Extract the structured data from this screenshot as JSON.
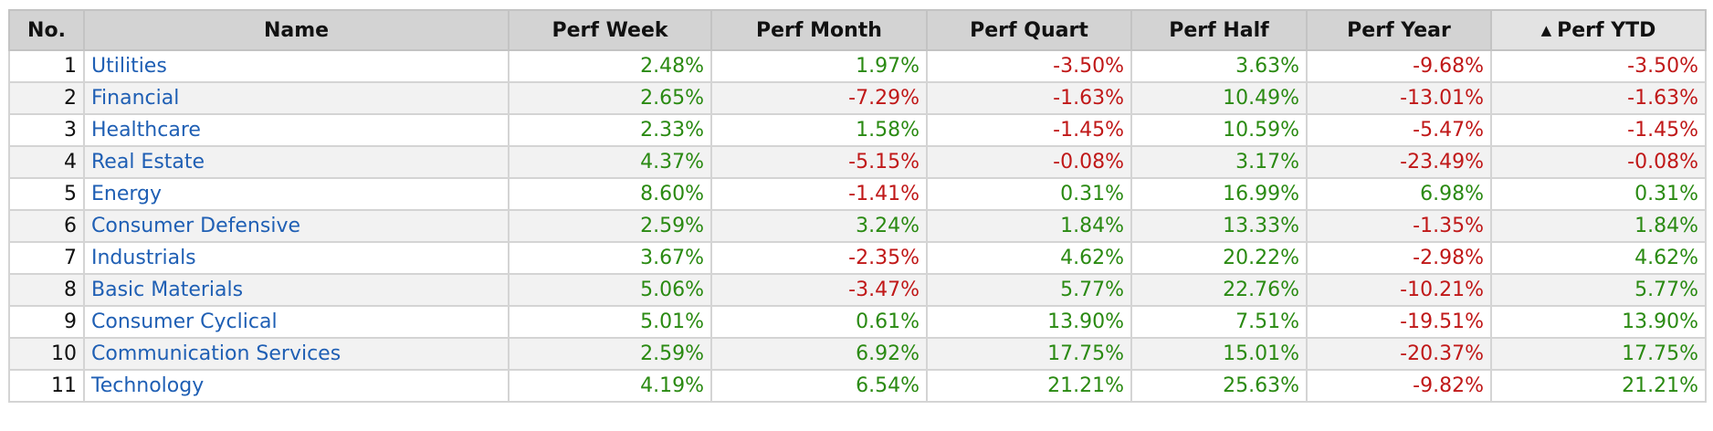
{
  "colors": {
    "positive": "#2a8a12",
    "negative": "#c01818",
    "link": "#1f5fb4",
    "header_bg": "#d3d3d3",
    "header_sorted_bg": "#e3e3e3",
    "row_alt_bg": "#f2f2f2"
  },
  "table": {
    "columns": [
      "No.",
      "Name",
      "Perf Week",
      "Perf Month",
      "Perf Quart",
      "Perf Half",
      "Perf Year",
      "Perf YTD"
    ],
    "sort": {
      "column": "Perf YTD",
      "direction": "ascending",
      "icon": "sort-up-icon"
    },
    "rows": [
      {
        "no": "1",
        "name": "Utilities",
        "week": "2.48%",
        "month": "1.97%",
        "quart": "-3.50%",
        "half": "3.63%",
        "year": "-9.68%",
        "ytd": "-3.50%"
      },
      {
        "no": "2",
        "name": "Financial",
        "week": "2.65%",
        "month": "-7.29%",
        "quart": "-1.63%",
        "half": "10.49%",
        "year": "-13.01%",
        "ytd": "-1.63%"
      },
      {
        "no": "3",
        "name": "Healthcare",
        "week": "2.33%",
        "month": "1.58%",
        "quart": "-1.45%",
        "half": "10.59%",
        "year": "-5.47%",
        "ytd": "-1.45%"
      },
      {
        "no": "4",
        "name": "Real Estate",
        "week": "4.37%",
        "month": "-5.15%",
        "quart": "-0.08%",
        "half": "3.17%",
        "year": "-23.49%",
        "ytd": "-0.08%"
      },
      {
        "no": "5",
        "name": "Energy",
        "week": "8.60%",
        "month": "-1.41%",
        "quart": "0.31%",
        "half": "16.99%",
        "year": "6.98%",
        "ytd": "0.31%"
      },
      {
        "no": "6",
        "name": "Consumer Defensive",
        "week": "2.59%",
        "month": "3.24%",
        "quart": "1.84%",
        "half": "13.33%",
        "year": "-1.35%",
        "ytd": "1.84%"
      },
      {
        "no": "7",
        "name": "Industrials",
        "week": "3.67%",
        "month": "-2.35%",
        "quart": "4.62%",
        "half": "20.22%",
        "year": "-2.98%",
        "ytd": "4.62%"
      },
      {
        "no": "8",
        "name": "Basic Materials",
        "week": "5.06%",
        "month": "-3.47%",
        "quart": "5.77%",
        "half": "22.76%",
        "year": "-10.21%",
        "ytd": "5.77%"
      },
      {
        "no": "9",
        "name": "Consumer Cyclical",
        "week": "5.01%",
        "month": "0.61%",
        "quart": "13.90%",
        "half": "7.51%",
        "year": "-19.51%",
        "ytd": "13.90%"
      },
      {
        "no": "10",
        "name": "Communication Services",
        "week": "2.59%",
        "month": "6.92%",
        "quart": "17.75%",
        "half": "15.01%",
        "year": "-20.37%",
        "ytd": "17.75%"
      },
      {
        "no": "11",
        "name": "Technology",
        "week": "4.19%",
        "month": "6.54%",
        "quart": "21.21%",
        "half": "25.63%",
        "year": "-9.82%",
        "ytd": "21.21%"
      }
    ]
  }
}
